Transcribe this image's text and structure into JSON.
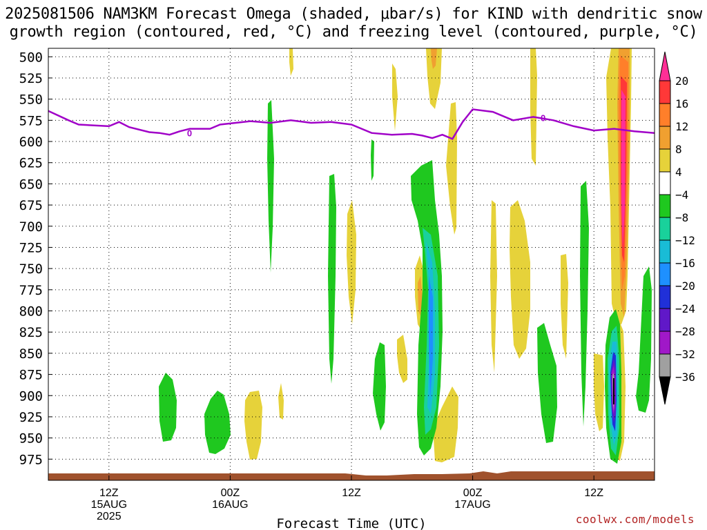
{
  "title": {
    "line1": "2025081506 NAM3KM Forecast Omega (shaded, μbar/s) for KIND with dendritic snow",
    "line2": "growth region (contoured, red, °C) and freezing level (contoured, purple, °C)"
  },
  "credit": "coolwx.com/models",
  "chart_data": {
    "type": "heatmap",
    "xlabel": "Forecast Time (UTC)",
    "ylabel": "",
    "y_levels": [
      500,
      525,
      550,
      575,
      600,
      625,
      650,
      675,
      700,
      725,
      750,
      775,
      800,
      825,
      850,
      875,
      900,
      925,
      950,
      975
    ],
    "x_ticks": [
      {
        "hour": 6,
        "lines": [
          "12Z",
          "15AUG",
          "2025"
        ]
      },
      {
        "hour": 18,
        "lines": [
          "00Z",
          "16AUG"
        ]
      },
      {
        "hour": 30,
        "lines": [
          "12Z"
        ]
      },
      {
        "hour": 42,
        "lines": [
          "00Z",
          "17AUG"
        ]
      },
      {
        "hour": 54,
        "lines": [
          "12Z"
        ]
      }
    ],
    "x_range_hours": [
      0,
      60
    ],
    "grid": true,
    "colorbar": {
      "ticks": [
        "20",
        "16",
        "12",
        "8",
        "4",
        "−4",
        "−8",
        "−12",
        "−16",
        "−20",
        "−24",
        "−28",
        "−32",
        "−36"
      ],
      "colors": [
        "#ff2f96",
        "#ff3838",
        "#ff7f2a",
        "#f0a030",
        "#e6d23a",
        "#ffffff",
        "#1fc81f",
        "#19d19b",
        "#19bcd6",
        "#1e90ff",
        "#2030d8",
        "#6018c8",
        "#a018c8",
        "#a0a0a0",
        "#000000"
      ]
    },
    "freezing_level": {
      "label": "0",
      "color": "#a000c8",
      "hours": [
        0,
        2,
        3,
        6,
        7,
        8,
        10,
        11,
        12,
        13,
        14,
        16,
        17,
        20,
        21,
        22,
        24,
        26,
        28,
        30,
        32,
        34,
        36,
        37,
        38,
        39,
        40,
        41,
        42,
        44,
        46,
        48,
        50,
        52,
        54,
        56,
        58,
        60
      ],
      "pressure": [
        564,
        575,
        580,
        582,
        577,
        583,
        589,
        590,
        592,
        588,
        585,
        585,
        580,
        576,
        577,
        578,
        575,
        578,
        577,
        580,
        590,
        592,
        591,
        593,
        596,
        592,
        597,
        577,
        562,
        565,
        575,
        571,
        575,
        582,
        587,
        585,
        588,
        590
      ]
    }
  }
}
